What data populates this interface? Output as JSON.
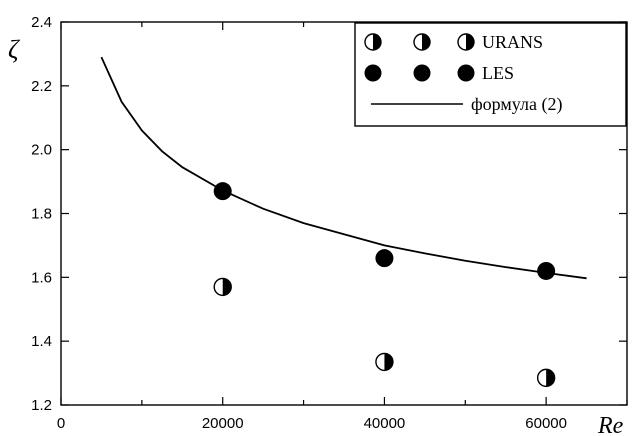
{
  "chart_data": {
    "type": "scatter",
    "title": "",
    "xlabel": "Re",
    "ylabel": "ζ",
    "xlim": [
      0,
      70000
    ],
    "ylim": [
      1.2,
      2.4
    ],
    "x_ticks": [
      0,
      10000,
      20000,
      30000,
      40000,
      50000,
      60000,
      70000
    ],
    "x_tick_labels": [
      "0",
      "",
      "20000",
      "",
      "40000",
      "",
      "60000",
      ""
    ],
    "y_ticks": [
      1.2,
      1.4,
      1.6,
      1.8,
      2.0,
      2.2,
      2.4
    ],
    "y_tick_labels": [
      "1.2",
      "1.4",
      "1.6",
      "1.8",
      "2.0",
      "2.2",
      "2.4"
    ],
    "grid": false,
    "legend_position": "top-right",
    "series": [
      {
        "name": "URANS",
        "marker": "half-filled-circle",
        "points": [
          {
            "x": 20000,
            "y": 1.57
          },
          {
            "x": 40000,
            "y": 1.335
          },
          {
            "x": 60000,
            "y": 1.285
          }
        ]
      },
      {
        "name": "LES",
        "marker": "filled-circle",
        "points": [
          {
            "x": 20000,
            "y": 1.87
          },
          {
            "x": 40000,
            "y": 1.66
          },
          {
            "x": 60000,
            "y": 1.62
          }
        ]
      },
      {
        "name": "формула (2)",
        "marker": "line",
        "points": [
          {
            "x": 5000,
            "y": 2.29
          },
          {
            "x": 7500,
            "y": 2.15
          },
          {
            "x": 10000,
            "y": 2.06
          },
          {
            "x": 12500,
            "y": 1.995
          },
          {
            "x": 15000,
            "y": 1.945
          },
          {
            "x": 20000,
            "y": 1.872
          },
          {
            "x": 25000,
            "y": 1.815
          },
          {
            "x": 30000,
            "y": 1.77
          },
          {
            "x": 35000,
            "y": 1.735
          },
          {
            "x": 40000,
            "y": 1.7
          },
          {
            "x": 45000,
            "y": 1.675
          },
          {
            "x": 50000,
            "y": 1.652
          },
          {
            "x": 55000,
            "y": 1.632
          },
          {
            "x": 60000,
            "y": 1.614
          },
          {
            "x": 65000,
            "y": 1.597
          }
        ]
      }
    ]
  }
}
